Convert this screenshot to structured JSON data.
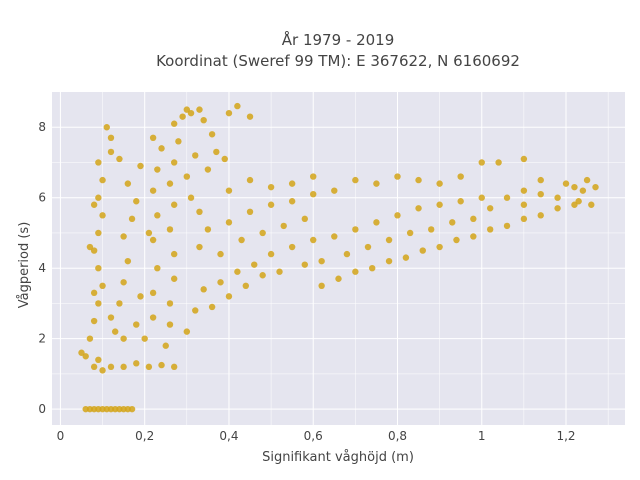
{
  "chart_data": {
    "type": "scatter",
    "title_line1": "År 1979 - 2019",
    "title_line2": "Koordinat (Sweref 99 TM): E 367622, N 6160692",
    "xlabel": "Signifikant våghöjd (m)",
    "ylabel": "Vågperiod (s)",
    "xlim": [
      -0.02,
      1.34
    ],
    "ylim": [
      -0.45,
      9.0
    ],
    "x_ticks": [
      0,
      0.2,
      0.4,
      0.6,
      0.8,
      1.0,
      1.2
    ],
    "x_tick_labels": [
      "0",
      "0,2",
      "0,4",
      "0,6",
      "0,8",
      "1",
      "1,2"
    ],
    "y_ticks": [
      0,
      2,
      4,
      6,
      8
    ],
    "y_tick_labels": [
      "0",
      "2",
      "4",
      "6",
      "8"
    ],
    "grid": true,
    "colors": {
      "marker": "#D4A418",
      "background": "#E5E5EF",
      "grid": "#FFFFFF"
    },
    "series": [
      {
        "points": [
          [
            0.06,
            1.5
          ],
          [
            0.05,
            1.6
          ],
          [
            0.07,
            2.0
          ],
          [
            0.08,
            1.2
          ],
          [
            0.09,
            1.4
          ],
          [
            0.1,
            1.1
          ],
          [
            0.12,
            1.2
          ],
          [
            0.15,
            1.2
          ],
          [
            0.18,
            1.3
          ],
          [
            0.21,
            1.2
          ],
          [
            0.24,
            1.25
          ],
          [
            0.27,
            1.2
          ],
          [
            0.08,
            2.5
          ],
          [
            0.09,
            3.0
          ],
          [
            0.1,
            3.5
          ],
          [
            0.09,
            4.0
          ],
          [
            0.08,
            4.5
          ],
          [
            0.09,
            5.0
          ],
          [
            0.1,
            5.5
          ],
          [
            0.09,
            6.0
          ],
          [
            0.1,
            6.5
          ],
          [
            0.09,
            7.0
          ],
          [
            0.12,
            7.3
          ],
          [
            0.11,
            8.0
          ],
          [
            0.12,
            7.7
          ],
          [
            0.08,
            5.8
          ],
          [
            0.07,
            4.6
          ],
          [
            0.08,
            3.3
          ],
          [
            0.13,
            2.2
          ],
          [
            0.14,
            3.0
          ],
          [
            0.15,
            3.6
          ],
          [
            0.16,
            4.2
          ],
          [
            0.15,
            4.9
          ],
          [
            0.17,
            5.4
          ],
          [
            0.18,
            5.9
          ],
          [
            0.16,
            6.4
          ],
          [
            0.19,
            6.9
          ],
          [
            0.14,
            7.1
          ],
          [
            0.12,
            2.6
          ],
          [
            0.15,
            2.0
          ],
          [
            0.18,
            2.4
          ],
          [
            0.19,
            3.2
          ],
          [
            0.2,
            2.0
          ],
          [
            0.22,
            2.6
          ],
          [
            0.22,
            3.3
          ],
          [
            0.23,
            4.0
          ],
          [
            0.22,
            4.8
          ],
          [
            0.23,
            5.5
          ],
          [
            0.22,
            6.2
          ],
          [
            0.23,
            6.8
          ],
          [
            0.24,
            7.4
          ],
          [
            0.22,
            7.7
          ],
          [
            0.21,
            5.0
          ],
          [
            0.25,
            1.8
          ],
          [
            0.26,
            2.4
          ],
          [
            0.26,
            3.0
          ],
          [
            0.27,
            3.7
          ],
          [
            0.27,
            4.4
          ],
          [
            0.26,
            5.1
          ],
          [
            0.27,
            5.8
          ],
          [
            0.26,
            6.4
          ],
          [
            0.27,
            7.0
          ],
          [
            0.28,
            7.6
          ],
          [
            0.27,
            8.1
          ],
          [
            0.29,
            8.3
          ],
          [
            0.3,
            8.5
          ],
          [
            0.31,
            8.4
          ],
          [
            0.33,
            8.5
          ],
          [
            0.34,
            8.2
          ],
          [
            0.36,
            7.8
          ],
          [
            0.32,
            7.2
          ],
          [
            0.3,
            6.6
          ],
          [
            0.31,
            6.0
          ],
          [
            0.33,
            5.6
          ],
          [
            0.35,
            6.8
          ],
          [
            0.37,
            7.3
          ],
          [
            0.39,
            7.1
          ],
          [
            0.42,
            8.6
          ],
          [
            0.4,
            8.4
          ],
          [
            0.45,
            8.3
          ],
          [
            0.3,
            2.2
          ],
          [
            0.32,
            2.8
          ],
          [
            0.34,
            3.4
          ],
          [
            0.36,
            2.9
          ],
          [
            0.38,
            3.6
          ],
          [
            0.4,
            3.2
          ],
          [
            0.42,
            3.9
          ],
          [
            0.44,
            3.5
          ],
          [
            0.46,
            4.1
          ],
          [
            0.48,
            3.8
          ],
          [
            0.5,
            4.4
          ],
          [
            0.52,
            3.9
          ],
          [
            0.55,
            4.6
          ],
          [
            0.58,
            4.1
          ],
          [
            0.6,
            4.8
          ],
          [
            0.33,
            4.6
          ],
          [
            0.35,
            5.1
          ],
          [
            0.38,
            4.4
          ],
          [
            0.4,
            5.3
          ],
          [
            0.43,
            4.8
          ],
          [
            0.45,
            5.6
          ],
          [
            0.48,
            5.0
          ],
          [
            0.5,
            5.8
          ],
          [
            0.53,
            5.2
          ],
          [
            0.55,
            5.9
          ],
          [
            0.58,
            5.4
          ],
          [
            0.6,
            6.1
          ],
          [
            0.4,
            6.2
          ],
          [
            0.45,
            6.5
          ],
          [
            0.5,
            6.3
          ],
          [
            0.55,
            6.4
          ],
          [
            0.6,
            6.6
          ],
          [
            0.65,
            6.2
          ],
          [
            0.7,
            6.5
          ],
          [
            0.75,
            6.4
          ],
          [
            0.8,
            6.6
          ],
          [
            0.85,
            6.5
          ],
          [
            0.9,
            6.4
          ],
          [
            0.95,
            6.6
          ],
          [
            1.0,
            7.0
          ],
          [
            1.04,
            7.0
          ],
          [
            1.1,
            6.2
          ],
          [
            0.62,
            4.2
          ],
          [
            0.65,
            4.9
          ],
          [
            0.68,
            4.4
          ],
          [
            0.7,
            5.1
          ],
          [
            0.73,
            4.6
          ],
          [
            0.75,
            5.3
          ],
          [
            0.78,
            4.8
          ],
          [
            0.8,
            5.5
          ],
          [
            0.83,
            5.0
          ],
          [
            0.85,
            5.7
          ],
          [
            0.88,
            5.1
          ],
          [
            0.9,
            5.8
          ],
          [
            0.93,
            5.3
          ],
          [
            0.95,
            5.9
          ],
          [
            0.98,
            5.4
          ],
          [
            1.0,
            6.0
          ],
          [
            0.62,
            3.5
          ],
          [
            0.66,
            3.7
          ],
          [
            0.7,
            3.9
          ],
          [
            0.74,
            4.0
          ],
          [
            0.78,
            4.2
          ],
          [
            0.82,
            4.3
          ],
          [
            0.86,
            4.5
          ],
          [
            0.9,
            4.6
          ],
          [
            0.94,
            4.8
          ],
          [
            0.98,
            4.9
          ],
          [
            1.02,
            5.1
          ],
          [
            1.06,
            5.2
          ],
          [
            1.1,
            5.4
          ],
          [
            1.14,
            5.5
          ],
          [
            1.18,
            5.7
          ],
          [
            1.22,
            5.8
          ],
          [
            1.02,
            5.7
          ],
          [
            1.06,
            6.0
          ],
          [
            1.1,
            5.8
          ],
          [
            1.14,
            6.1
          ],
          [
            1.18,
            6.0
          ],
          [
            1.2,
            6.4
          ],
          [
            1.22,
            6.3
          ],
          [
            1.24,
            6.2
          ],
          [
            1.25,
            6.5
          ],
          [
            1.27,
            6.3
          ],
          [
            1.23,
            5.9
          ],
          [
            1.26,
            5.8
          ],
          [
            1.1,
            7.1
          ],
          [
            1.14,
            6.5
          ],
          [
            0.06,
            0.0
          ],
          [
            0.07,
            0.0
          ],
          [
            0.08,
            0.0
          ],
          [
            0.09,
            0.0
          ],
          [
            0.1,
            0.0
          ],
          [
            0.11,
            0.0
          ],
          [
            0.12,
            0.0
          ],
          [
            0.13,
            0.0
          ],
          [
            0.14,
            0.0
          ],
          [
            0.15,
            0.0
          ],
          [
            0.16,
            0.0
          ],
          [
            0.17,
            0.0
          ]
        ]
      }
    ]
  }
}
